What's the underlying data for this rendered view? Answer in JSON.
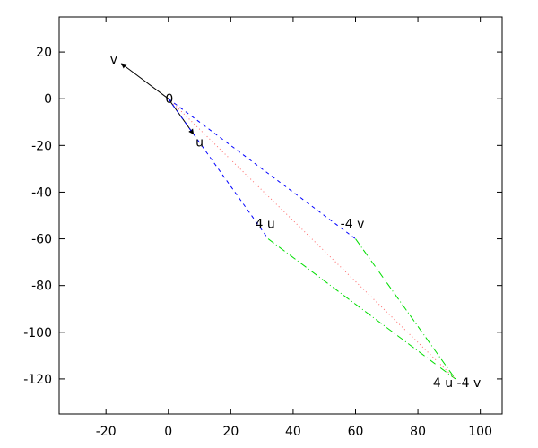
{
  "chart_data": {
    "type": "line",
    "title": "",
    "xlabel": "",
    "ylabel": "",
    "xlim": [
      -35,
      107
    ],
    "ylim": [
      -135,
      35
    ],
    "grid": false,
    "xticks": [
      -20,
      0,
      20,
      40,
      60,
      80,
      100
    ],
    "yticks": [
      20,
      0,
      -20,
      -40,
      -60,
      -80,
      -100,
      -120
    ],
    "xtick_labels": [
      "-20",
      "0",
      "20",
      "40",
      "60",
      "80",
      "100"
    ],
    "ytick_labels": [
      "20",
      "0",
      "-20",
      "-40",
      "-60",
      "-80",
      "-100",
      "-120"
    ],
    "series": [
      {
        "kind": "arrow",
        "style": "solid",
        "color": "#000000",
        "points": [
          [
            0,
            0
          ],
          [
            -15,
            15
          ]
        ]
      },
      {
        "kind": "arrow",
        "style": "solid",
        "color": "#000000",
        "points": [
          [
            0,
            0
          ],
          [
            8,
            -15
          ]
        ]
      },
      {
        "kind": "line",
        "style": "dashed",
        "color": "#0000ff",
        "points": [
          [
            0,
            0
          ],
          [
            32,
            -60
          ]
        ]
      },
      {
        "kind": "line",
        "style": "dashed",
        "color": "#0000ff",
        "points": [
          [
            0,
            0
          ],
          [
            60,
            -60
          ]
        ]
      },
      {
        "kind": "line",
        "style": "dashdot",
        "color": "#00dd00",
        "points": [
          [
            32,
            -60
          ],
          [
            92,
            -120
          ]
        ]
      },
      {
        "kind": "line",
        "style": "dashdot",
        "color": "#00dd00",
        "points": [
          [
            60,
            -60
          ],
          [
            92,
            -120
          ]
        ]
      },
      {
        "kind": "line",
        "style": "dotted",
        "color": "#ff6a6a",
        "points": [
          [
            0,
            0
          ],
          [
            92,
            -120
          ]
        ]
      }
    ],
    "annotations": [
      {
        "text": "v",
        "x": -17.5,
        "y": 17
      },
      {
        "text": "0",
        "x": 0.3,
        "y": 0
      },
      {
        "text": "u",
        "x": 10,
        "y": -18.5
      },
      {
        "text": "4 u",
        "x": 31,
        "y": -53.5
      },
      {
        "text": "-4 v",
        "x": 59,
        "y": -53.5
      },
      {
        "text": "4 u -4 v",
        "x": 92.5,
        "y": -121.5
      }
    ]
  }
}
